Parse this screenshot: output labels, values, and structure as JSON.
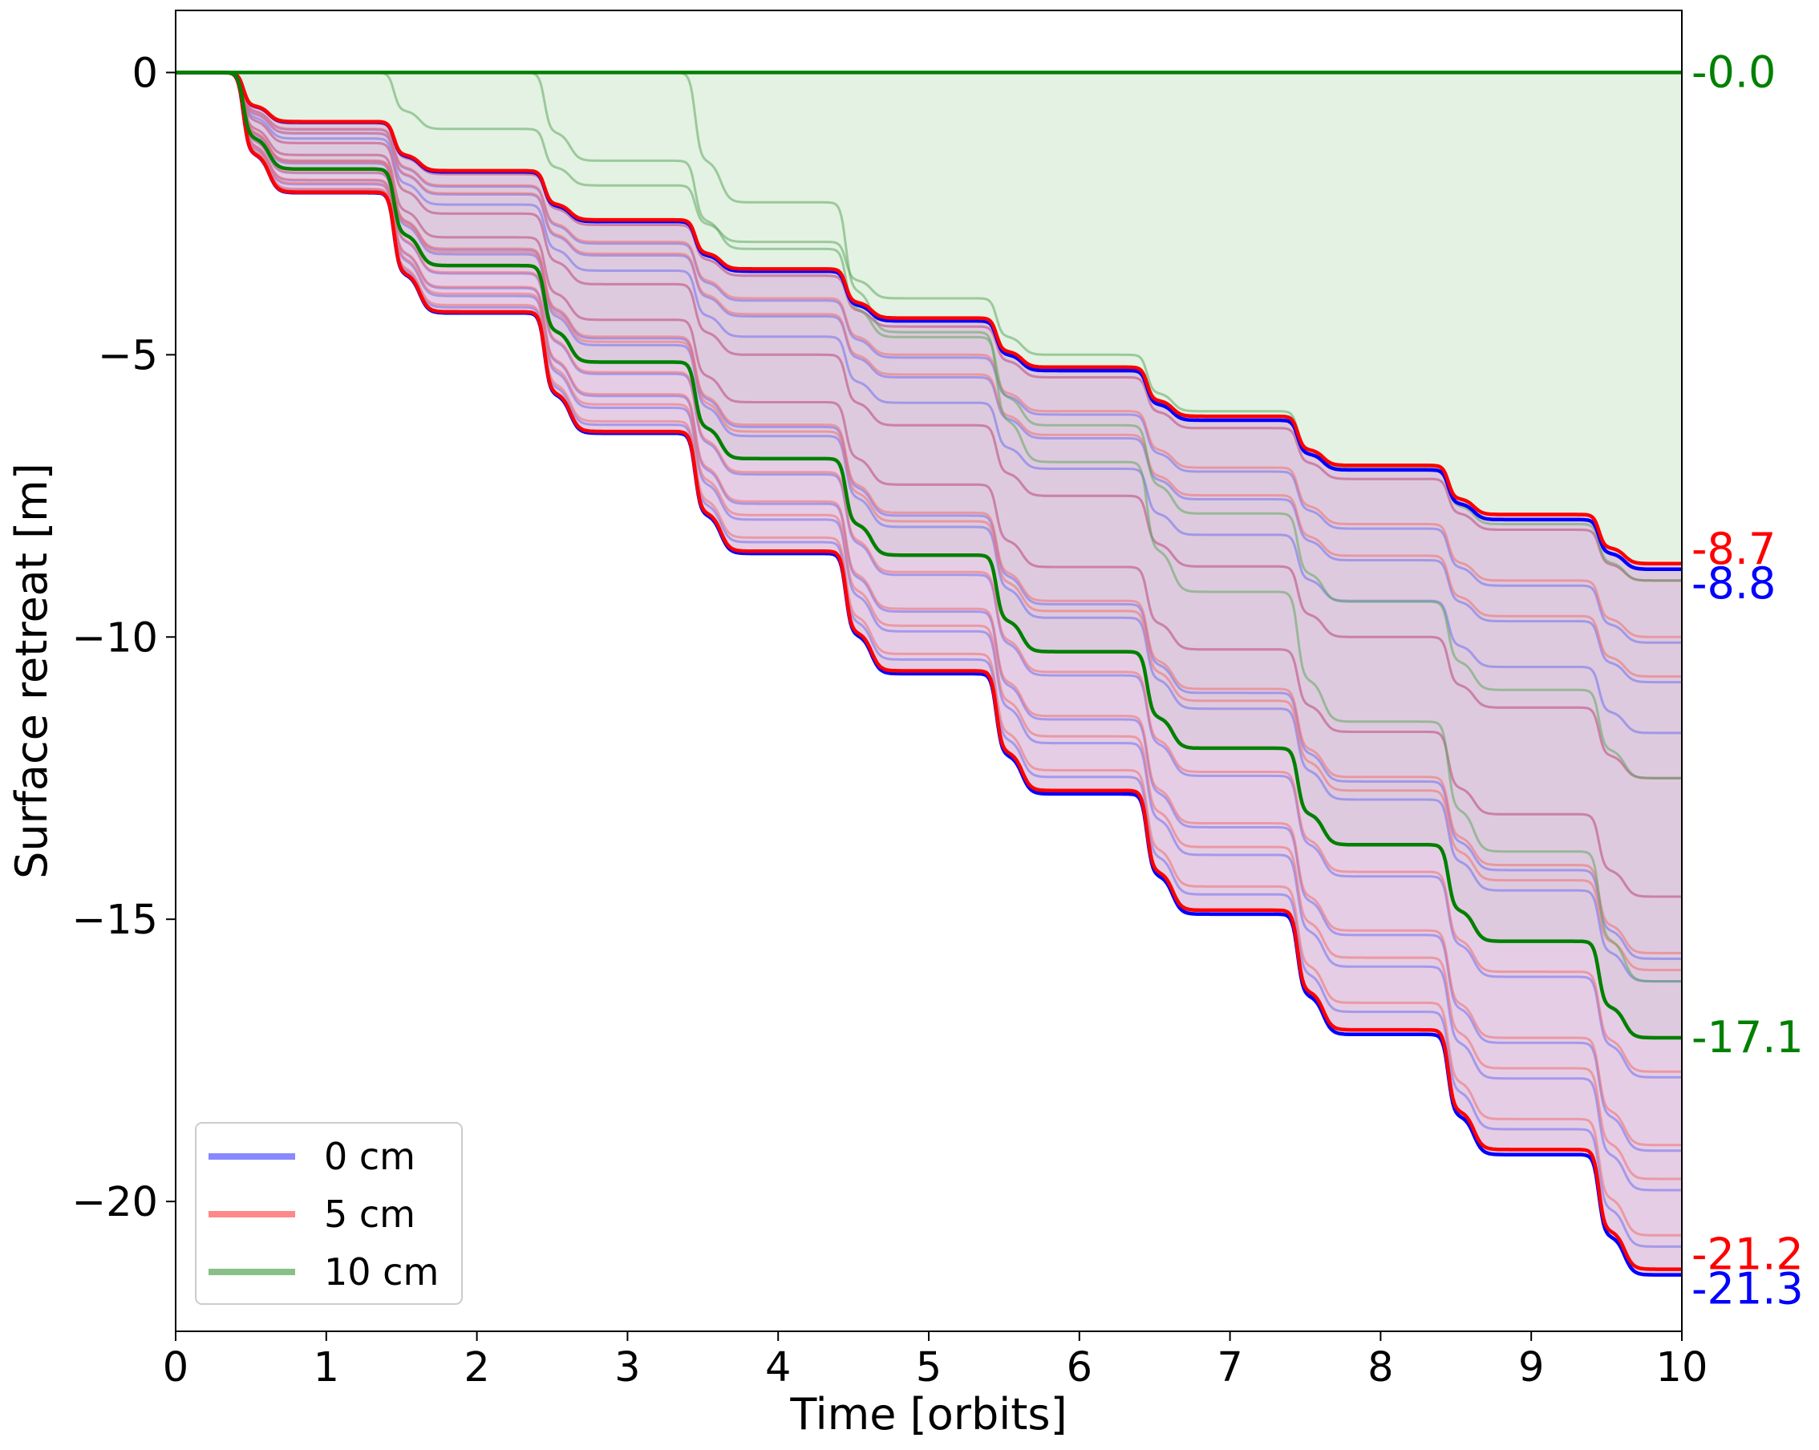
{
  "chart_data": {
    "type": "line",
    "title": "",
    "xlabel": "Time [orbits]",
    "ylabel": "Surface retreat [m]",
    "xlim": [
      0,
      10
    ],
    "ylim": [
      -22.3,
      1.1
    ],
    "xticks": [
      0,
      1,
      2,
      3,
      4,
      5,
      6,
      7,
      8,
      9,
      10
    ],
    "xtick_labels": [
      "0",
      "1",
      "2",
      "3",
      "4",
      "5",
      "6",
      "7",
      "8",
      "9",
      "10"
    ],
    "yticks": [
      0,
      -5,
      -10,
      -15,
      -20
    ],
    "ytick_labels": [
      "0",
      "−5",
      "−10",
      "−15",
      "−20"
    ],
    "legend": {
      "position": "bottom-left",
      "entries": [
        {
          "label": "0 cm",
          "color": "#8888ff"
        },
        {
          "label": "5 cm",
          "color": "#ff8888"
        },
        {
          "label": "10 cm",
          "color": "#88c088"
        }
      ]
    },
    "colors": {
      "0 cm": "#0000ff",
      "5 cm": "#ff0000",
      "10 cm": "#008000"
    },
    "bands": [
      {
        "name": "10 cm",
        "upper_final": 0.0,
        "lower_final": -17.1,
        "fill": "#c8e6c8"
      },
      {
        "name": "0 cm / 5 cm",
        "upper_final": -8.7,
        "lower_final": -21.3,
        "fill": "#dcbcdc"
      }
    ],
    "series": [
      {
        "name": "0 cm min",
        "group": "0 cm",
        "onset": 0.45,
        "final": -8.8
      },
      {
        "name": "0 cm max",
        "group": "0 cm",
        "onset": 0.45,
        "final": -21.3
      },
      {
        "name": "5 cm min",
        "group": "5 cm",
        "onset": 0.45,
        "final": -8.7
      },
      {
        "name": "5 cm max",
        "group": "5 cm",
        "onset": 0.45,
        "final": -21.2
      },
      {
        "name": "10 cm min",
        "group": "10 cm",
        "onset": 10.0,
        "final": 0.0
      },
      {
        "name": "10 cm max",
        "group": "10 cm",
        "onset": 0.45,
        "final": -17.1
      }
    ],
    "thin_series_finals": {
      "0 cm": [
        -9.0,
        -10.1,
        -10.8,
        -11.7,
        -12.5,
        -14.6,
        -15.7,
        -16.1,
        -17.8,
        -19.1,
        -19.8,
        -20.8
      ],
      "5 cm": [
        -9.0,
        -10.0,
        -10.7,
        -12.5,
        -14.6,
        -15.6,
        -15.9,
        -17.7,
        -19.0,
        -19.6,
        -20.6
      ],
      "10 cm": [
        -9.0,
        -12.5,
        -16.1
      ]
    },
    "end_labels": [
      {
        "text": "-0.0",
        "value": 0.0,
        "color": "#008000"
      },
      {
        "text": "-8.7",
        "value": -8.7,
        "color": "#ff0000"
      },
      {
        "text": "-8.8",
        "value": -8.8,
        "color": "#0000ff"
      },
      {
        "text": "-17.1",
        "value": -17.1,
        "color": "#008000"
      },
      {
        "text": "-21.2",
        "value": -21.2,
        "color": "#ff0000"
      },
      {
        "text": "-21.3",
        "value": -21.3,
        "color": "#0000ff"
      }
    ]
  }
}
